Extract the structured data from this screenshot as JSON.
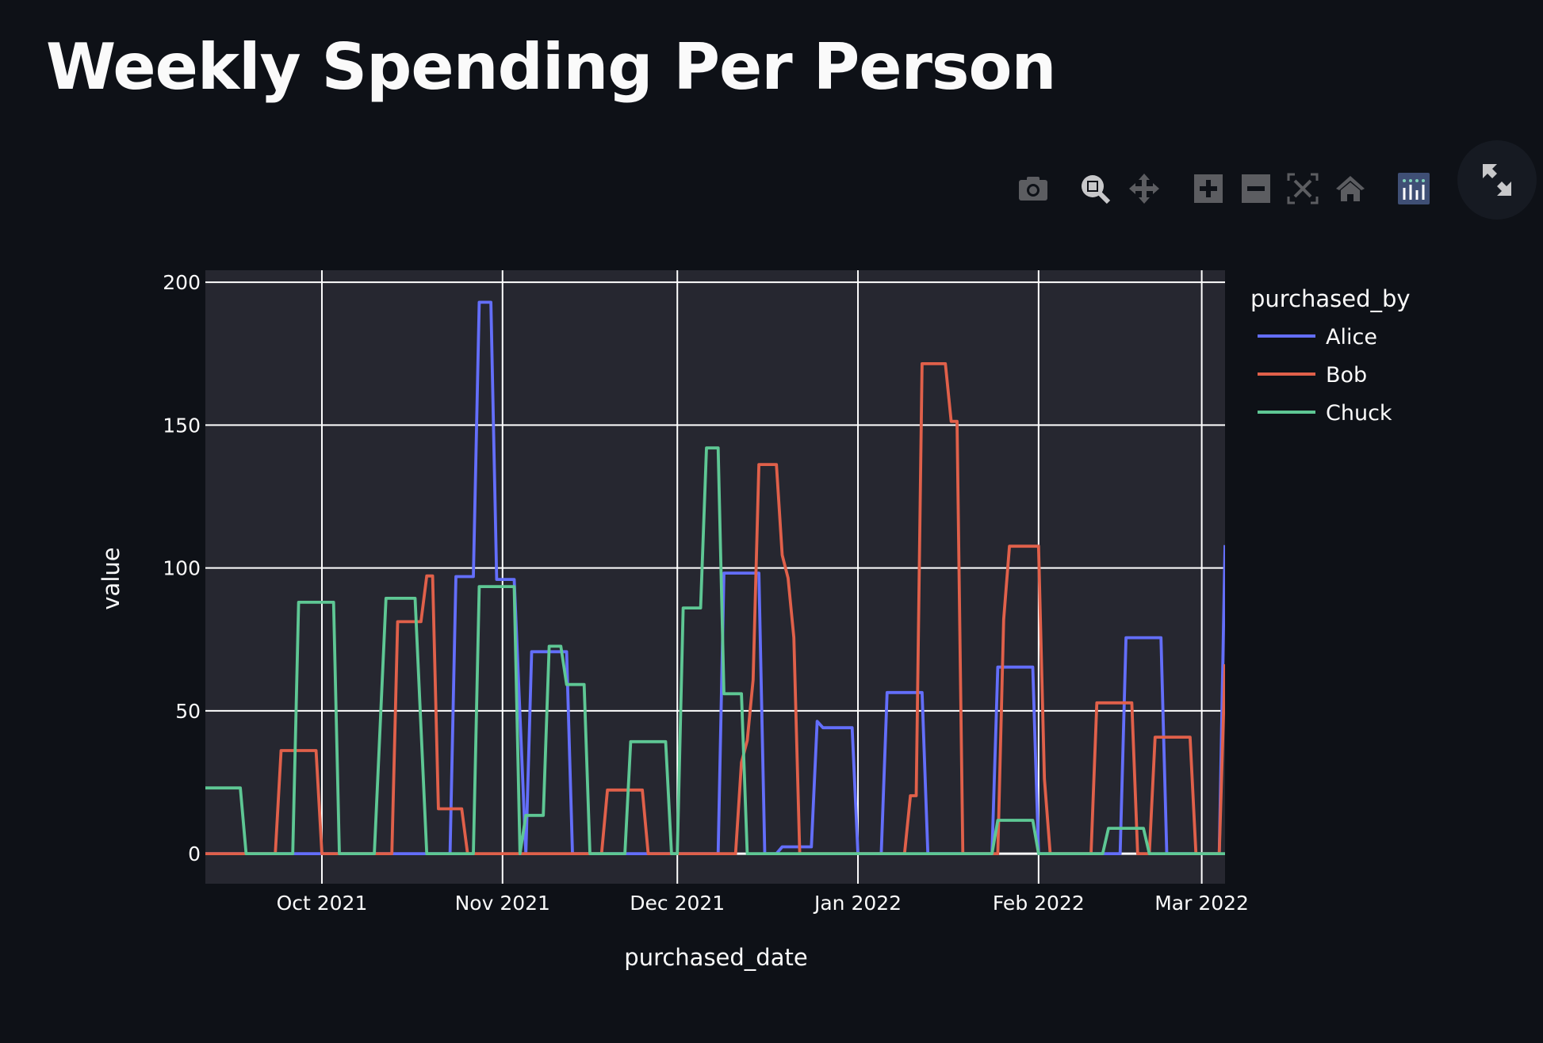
{
  "page": {
    "title": "Weekly Spending Per Person"
  },
  "modebar": {
    "icons": [
      "camera-icon",
      "zoom-icon",
      "pan-icon",
      "zoom-in-icon",
      "zoom-out-icon",
      "autoscale-icon",
      "reset-axes-home-icon",
      "plotly-logo-icon"
    ],
    "fullscreen_icon": "expand-icon"
  },
  "colors": {
    "background": "#0e1117",
    "plot_bg": "#262730",
    "Alice": "#636efa",
    "Bob": "#e0604a",
    "Chuck": "#5ec794"
  },
  "chart_data": {
    "type": "line",
    "xlabel": "purchased_date",
    "ylabel": "value",
    "xrange": [
      "2021-09-11",
      "2022-03-05"
    ],
    "ylim": [
      -10.5,
      204.2
    ],
    "grid": true,
    "legend_title": "purchased_by",
    "legend_placement": "right",
    "xticks": [
      {
        "date": "2021-10-01",
        "label": "Oct 2021"
      },
      {
        "date": "2021-11-01",
        "label": "Nov 2021"
      },
      {
        "date": "2021-12-01",
        "label": "Dec 2021"
      },
      {
        "date": "2022-01-01",
        "label": "Jan 2022"
      },
      {
        "date": "2022-02-01",
        "label": "Feb 2022"
      },
      {
        "date": "2022-03-01",
        "label": "Mar 2022"
      }
    ],
    "yticks": [
      0,
      50,
      100,
      150,
      200
    ],
    "series": [
      {
        "name": "Alice",
        "color": "#636efa",
        "points": [
          [
            "2021-09-11",
            0
          ],
          [
            "2021-10-23",
            0
          ],
          [
            "2021-10-24",
            97
          ],
          [
            "2021-10-27",
            97
          ],
          [
            "2021-10-28",
            193
          ],
          [
            "2021-10-30",
            193
          ],
          [
            "2021-10-31",
            96
          ],
          [
            "2021-11-03",
            96
          ],
          [
            "2021-11-05",
            0
          ],
          [
            "2021-11-06",
            70.7
          ],
          [
            "2021-11-12",
            70.7
          ],
          [
            "2021-11-13",
            0
          ],
          [
            "2021-12-08",
            0
          ],
          [
            "2021-12-09",
            98.2
          ],
          [
            "2021-12-15",
            98.2
          ],
          [
            "2021-12-16",
            0
          ],
          [
            "2021-12-18",
            0
          ],
          [
            "2021-12-19",
            2.4
          ],
          [
            "2021-12-24",
            2.4
          ],
          [
            "2021-12-25",
            46.3
          ],
          [
            "2021-12-26",
            44.1
          ],
          [
            "2021-12-31",
            44.1
          ],
          [
            "2022-01-01",
            0
          ],
          [
            "2022-01-05",
            0
          ],
          [
            "2022-01-06",
            56.4
          ],
          [
            "2022-01-12",
            56.4
          ],
          [
            "2022-01-13",
            0
          ],
          [
            "2022-01-24",
            0
          ],
          [
            "2022-01-25",
            65.3
          ],
          [
            "2022-01-31",
            65.3
          ],
          [
            "2022-02-01",
            0
          ],
          [
            "2022-02-15",
            0
          ],
          [
            "2022-02-16",
            75.6
          ],
          [
            "2022-02-22",
            75.6
          ],
          [
            "2022-02-23",
            0
          ],
          [
            "2022-03-04",
            0
          ],
          [
            "2022-03-05",
            108
          ]
        ]
      },
      {
        "name": "Bob",
        "color": "#e0604a",
        "points": [
          [
            "2021-09-11",
            0
          ],
          [
            "2021-09-23",
            0
          ],
          [
            "2021-09-24",
            36.1
          ],
          [
            "2021-09-30",
            36.1
          ],
          [
            "2021-10-01",
            0
          ],
          [
            "2021-10-13",
            0
          ],
          [
            "2021-10-14",
            81.2
          ],
          [
            "2021-10-18",
            81.2
          ],
          [
            "2021-10-19",
            97.2
          ],
          [
            "2021-10-20",
            97.2
          ],
          [
            "2021-10-21",
            15.7
          ],
          [
            "2021-10-25",
            15.7
          ],
          [
            "2021-10-26",
            0
          ],
          [
            "2021-11-18",
            0
          ],
          [
            "2021-11-19",
            22.3
          ],
          [
            "2021-11-25",
            22.3
          ],
          [
            "2021-11-26",
            0
          ],
          [
            "2021-12-11",
            0
          ],
          [
            "2021-12-12",
            31.9
          ],
          [
            "2021-12-13",
            39.6
          ],
          [
            "2021-12-14",
            60.8
          ],
          [
            "2021-12-15",
            136.2
          ],
          [
            "2021-12-18",
            136.2
          ],
          [
            "2021-12-19",
            104.5
          ],
          [
            "2021-12-20",
            96.5
          ],
          [
            "2021-12-21",
            75.6
          ],
          [
            "2021-12-22",
            0
          ],
          [
            "2022-01-09",
            0
          ],
          [
            "2022-01-10",
            20.3
          ],
          [
            "2022-01-11",
            20.3
          ],
          [
            "2022-01-12",
            171.5
          ],
          [
            "2022-01-16",
            171.5
          ],
          [
            "2022-01-17",
            151.3
          ],
          [
            "2022-01-18",
            151.3
          ],
          [
            "2022-01-19",
            0
          ],
          [
            "2022-01-25",
            0
          ],
          [
            "2022-01-26",
            81.9
          ],
          [
            "2022-01-27",
            107.6
          ],
          [
            "2022-02-01",
            107.6
          ],
          [
            "2022-02-02",
            26.2
          ],
          [
            "2022-02-03",
            0
          ],
          [
            "2022-02-10",
            0
          ],
          [
            "2022-02-11",
            52.8
          ],
          [
            "2022-02-17",
            52.8
          ],
          [
            "2022-02-18",
            0
          ],
          [
            "2022-02-20",
            0
          ],
          [
            "2022-02-21",
            40.8
          ],
          [
            "2022-02-27",
            40.8
          ],
          [
            "2022-02-28",
            0
          ],
          [
            "2022-03-04",
            0
          ],
          [
            "2022-03-05",
            66.3
          ]
        ]
      },
      {
        "name": "Chuck",
        "color": "#5ec794",
        "points": [
          [
            "2021-09-11",
            23
          ],
          [
            "2021-09-17",
            23
          ],
          [
            "2021-09-18",
            0
          ],
          [
            "2021-09-26",
            0
          ],
          [
            "2021-09-27",
            88
          ],
          [
            "2021-10-03",
            88
          ],
          [
            "2021-10-04",
            0
          ],
          [
            "2021-10-10",
            0
          ],
          [
            "2021-10-12",
            89.4
          ],
          [
            "2021-10-17",
            89.4
          ],
          [
            "2021-10-19",
            0
          ],
          [
            "2021-10-27",
            0
          ],
          [
            "2021-10-28",
            93.5
          ],
          [
            "2021-11-03",
            93.5
          ],
          [
            "2021-11-04",
            0
          ],
          [
            "2021-11-05",
            13.4
          ],
          [
            "2021-11-08",
            13.4
          ],
          [
            "2021-11-09",
            72.6
          ],
          [
            "2021-11-11",
            72.6
          ],
          [
            "2021-11-12",
            59.2
          ],
          [
            "2021-11-15",
            59.2
          ],
          [
            "2021-11-16",
            0
          ],
          [
            "2021-11-22",
            0
          ],
          [
            "2021-11-23",
            39.2
          ],
          [
            "2021-11-29",
            39.2
          ],
          [
            "2021-11-30",
            0
          ],
          [
            "2021-12-01",
            0
          ],
          [
            "2021-12-02",
            86
          ],
          [
            "2021-12-05",
            86
          ],
          [
            "2021-12-06",
            142
          ],
          [
            "2021-12-08",
            142
          ],
          [
            "2021-12-09",
            56
          ],
          [
            "2021-12-12",
            56
          ],
          [
            "2021-12-13",
            0
          ],
          [
            "2022-01-24",
            0
          ],
          [
            "2022-01-25",
            11.7
          ],
          [
            "2022-01-31",
            11.7
          ],
          [
            "2022-02-01",
            0
          ],
          [
            "2022-02-12",
            0
          ],
          [
            "2022-02-13",
            8.9
          ],
          [
            "2022-02-19",
            8.9
          ],
          [
            "2022-02-20",
            0
          ],
          [
            "2022-03-05",
            0
          ]
        ]
      }
    ]
  }
}
